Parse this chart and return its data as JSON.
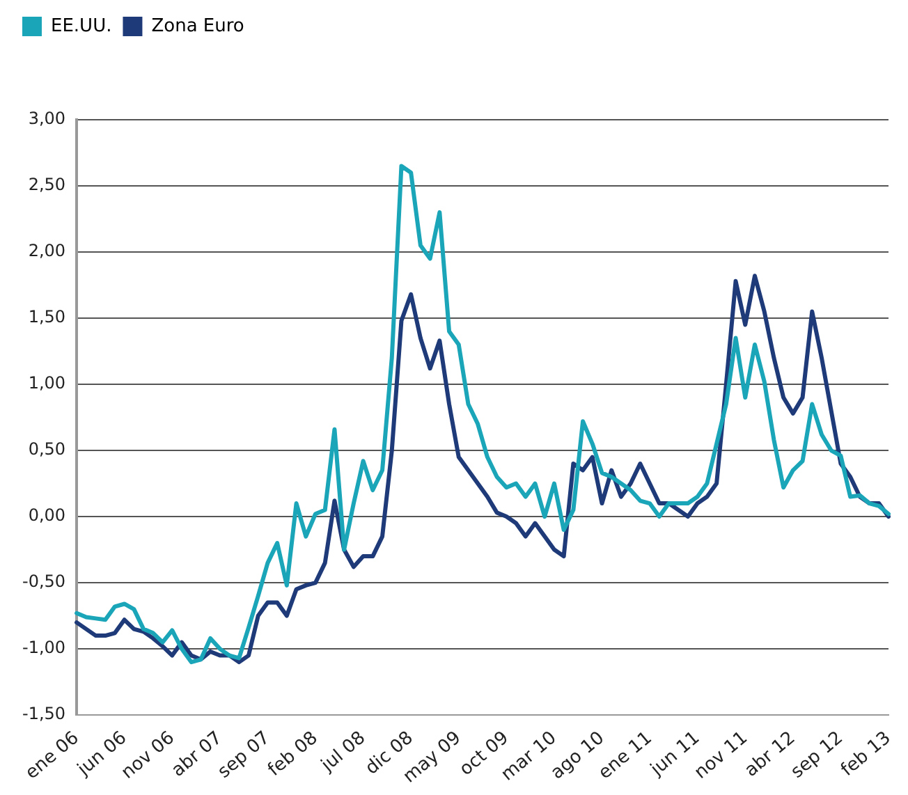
{
  "chart_data": {
    "type": "line",
    "categories": [
      "ene 06",
      null,
      null,
      null,
      null,
      "jun 06",
      null,
      null,
      null,
      null,
      "nov 06",
      null,
      null,
      null,
      null,
      "abr 07",
      null,
      null,
      null,
      null,
      "sep 07",
      null,
      null,
      null,
      null,
      "feb 08",
      null,
      null,
      null,
      null,
      "jul 08",
      null,
      null,
      null,
      null,
      "dic 08",
      null,
      null,
      null,
      null,
      "may 09",
      null,
      null,
      null,
      null,
      "oct 09",
      null,
      null,
      null,
      null,
      "mar 10",
      null,
      null,
      null,
      null,
      "ago 10",
      null,
      null,
      null,
      null,
      "ene 11",
      null,
      null,
      null,
      null,
      "jun 11",
      null,
      null,
      null,
      null,
      "nov 11",
      null,
      null,
      null,
      null,
      "abr 12",
      null,
      null,
      null,
      null,
      "sep 12",
      null,
      null,
      null,
      null,
      "feb 13"
    ],
    "series": [
      {
        "name": "EE.UU.",
        "color": "#1aa5b8",
        "values": [
          -0.73,
          -0.76,
          -0.77,
          -0.78,
          -0.68,
          -0.66,
          -0.7,
          -0.85,
          -0.88,
          -0.95,
          -0.86,
          -1.0,
          -1.1,
          -1.08,
          -0.92,
          -1.0,
          -1.05,
          -1.07,
          -0.84,
          -0.6,
          -0.35,
          -0.2,
          -0.52,
          0.1,
          -0.15,
          0.02,
          0.05,
          0.66,
          -0.25,
          0.1,
          0.42,
          0.2,
          0.35,
          1.2,
          2.65,
          2.6,
          2.05,
          1.95,
          2.3,
          1.4,
          1.3,
          0.85,
          0.7,
          0.45,
          0.3,
          0.22,
          0.25,
          0.15,
          0.25,
          0.0,
          0.25,
          -0.1,
          0.05,
          0.72,
          0.55,
          0.33,
          0.3,
          0.25,
          0.2,
          0.12,
          0.1,
          0.0,
          0.1,
          0.1,
          0.1,
          0.15,
          0.25,
          0.55,
          0.85,
          1.35,
          0.9,
          1.3,
          1.02,
          0.58,
          0.22,
          0.35,
          0.42,
          0.85,
          0.62,
          0.5,
          0.46,
          0.15,
          0.16,
          0.1,
          0.08,
          0.02
        ]
      },
      {
        "name": "Zona Euro",
        "color": "#1f3a78",
        "values": [
          -0.8,
          -0.85,
          -0.9,
          -0.9,
          -0.88,
          -0.78,
          -0.85,
          -0.87,
          -0.92,
          -0.98,
          -1.05,
          -0.95,
          -1.05,
          -1.08,
          -1.02,
          -1.05,
          -1.05,
          -1.1,
          -1.05,
          -0.75,
          -0.65,
          -0.65,
          -0.75,
          -0.55,
          -0.52,
          -0.5,
          -0.35,
          0.12,
          -0.25,
          -0.38,
          -0.3,
          -0.3,
          -0.15,
          0.5,
          1.48,
          1.68,
          1.35,
          1.12,
          1.33,
          0.85,
          0.45,
          0.35,
          0.25,
          0.15,
          0.03,
          0.0,
          -0.05,
          -0.15,
          -0.05,
          -0.15,
          -0.25,
          -0.3,
          0.4,
          0.35,
          0.45,
          0.1,
          0.35,
          0.15,
          0.25,
          0.4,
          0.25,
          0.1,
          0.1,
          0.05,
          0.0,
          0.1,
          0.15,
          0.25,
          1.0,
          1.78,
          1.45,
          1.82,
          1.55,
          1.2,
          0.9,
          0.78,
          0.9,
          1.55,
          1.2,
          0.8,
          0.4,
          0.3,
          0.15,
          0.1,
          0.1,
          0.0
        ]
      }
    ],
    "ylim": [
      -1.5,
      3
    ],
    "yticks": [
      {
        "value": -1.5,
        "label": "-1,50"
      },
      {
        "value": -1,
        "label": "-1,00"
      },
      {
        "value": -0.5,
        "label": "-0,50"
      },
      {
        "value": 0,
        "label": "0,00"
      },
      {
        "value": 0.5,
        "label": "0,50"
      },
      {
        "value": 1,
        "label": "1,00"
      },
      {
        "value": 1.5,
        "label": "1,50"
      },
      {
        "value": 2,
        "label": "2,00"
      },
      {
        "value": 2.5,
        "label": "2,50"
      },
      {
        "value": 3,
        "label": "3,00"
      }
    ],
    "grid": "y",
    "legend": "top left",
    "marker": "none",
    "line_style": "solid"
  }
}
